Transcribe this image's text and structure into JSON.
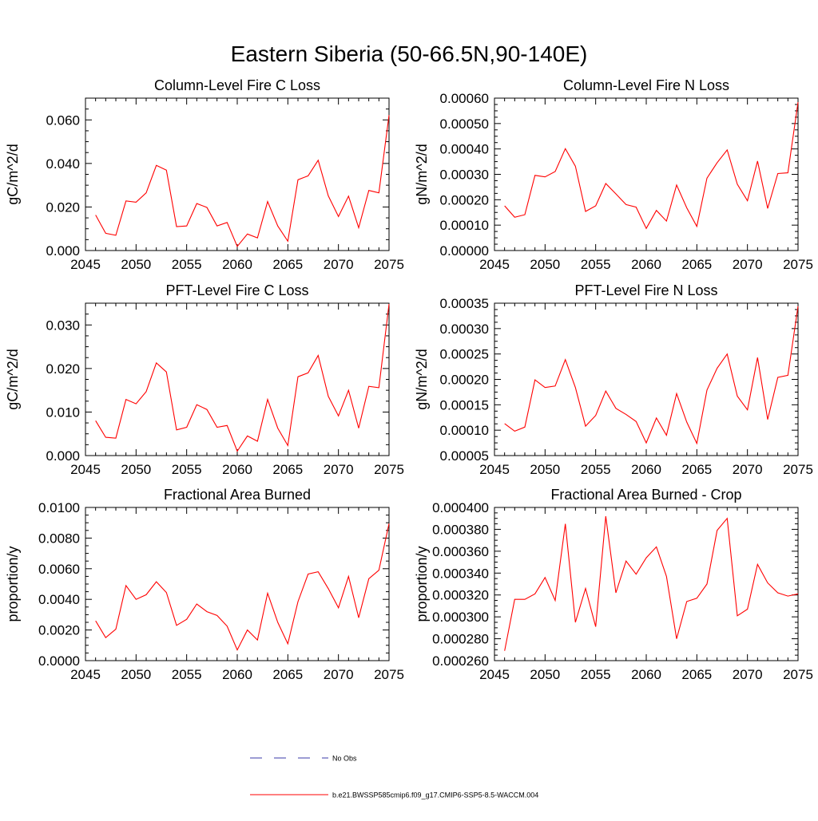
{
  "page": {
    "title": "Eastern Siberia (50-66.5N,90-140E)"
  },
  "chart_data": [
    {
      "id": "col-fire-c-loss",
      "type": "line",
      "title": "Column-Level Fire C Loss",
      "xlabel": "",
      "ylabel": "gC/m^2/d",
      "xlim": [
        2045,
        2075
      ],
      "ylim": [
        0,
        0.07
      ],
      "xticks": [
        2045,
        2050,
        2055,
        2060,
        2065,
        2070,
        2075
      ],
      "yticks": [
        0,
        0.02,
        0.04,
        0.06
      ],
      "ytick_labels": [
        "0.000",
        "0.020",
        "0.040",
        "0.060"
      ],
      "series": [
        {
          "name": "b.e21.BWSSP585cmip6.f09_g17.CMIP6-SSP5-8.5-WACCM.004",
          "color": "#ff0000",
          "x": [
            2046,
            2047,
            2048,
            2049,
            2050,
            2051,
            2052,
            2053,
            2054,
            2055,
            2056,
            2057,
            2058,
            2059,
            2060,
            2061,
            2062,
            2063,
            2064,
            2065,
            2066,
            2067,
            2068,
            2069,
            2070,
            2071,
            2072,
            2073,
            2074,
            2075
          ],
          "values": [
            0.0163,
            0.0079,
            0.007,
            0.0228,
            0.0222,
            0.0265,
            0.0391,
            0.0369,
            0.011,
            0.0113,
            0.0216,
            0.0198,
            0.0113,
            0.0129,
            0.0019,
            0.0076,
            0.0058,
            0.0225,
            0.0113,
            0.0043,
            0.0325,
            0.0343,
            0.0415,
            0.0251,
            0.0156,
            0.025,
            0.0105,
            0.0276,
            0.0265,
            0.0622
          ]
        }
      ]
    },
    {
      "id": "col-fire-n-loss",
      "type": "line",
      "title": "Column-Level Fire N Loss",
      "xlabel": "",
      "ylabel": "gN/m^2/d",
      "xlim": [
        2045,
        2075
      ],
      "ylim": [
        0,
        0.0006
      ],
      "xticks": [
        2045,
        2050,
        2055,
        2060,
        2065,
        2070,
        2075
      ],
      "yticks": [
        0,
        0.0001,
        0.0002,
        0.0003,
        0.0004,
        0.0005,
        0.0006
      ],
      "ytick_labels": [
        "0.00000",
        "0.00010",
        "0.00020",
        "0.00030",
        "0.00040",
        "0.00050",
        "0.00060"
      ],
      "series": [
        {
          "name": "b.e21.BWSSP585cmip6.f09_g17.CMIP6-SSP5-8.5-WACCM.004",
          "color": "#ff0000",
          "x": [
            2046,
            2047,
            2048,
            2049,
            2050,
            2051,
            2052,
            2053,
            2054,
            2055,
            2056,
            2057,
            2058,
            2059,
            2060,
            2061,
            2062,
            2063,
            2064,
            2065,
            2066,
            2067,
            2068,
            2069,
            2070,
            2071,
            2072,
            2073,
            2074,
            2075
          ],
          "values": [
            0.000176,
            0.000131,
            0.000141,
            0.000296,
            0.00029,
            0.000311,
            0.000401,
            0.000332,
            0.000154,
            0.000176,
            0.000264,
            0.000223,
            0.000181,
            0.000171,
            8.7e-05,
            0.000158,
            0.000116,
            0.000258,
            0.000168,
            9.5e-05,
            0.000285,
            0.000346,
            0.000396,
            0.000261,
            0.000196,
            0.000352,
            0.000166,
            0.000303,
            0.000306,
            0.000584
          ]
        }
      ]
    },
    {
      "id": "pft-fire-c-loss",
      "type": "line",
      "title": "PFT-Level Fire C Loss",
      "xlabel": "",
      "ylabel": "gC/m^2/d",
      "xlim": [
        2045,
        2075
      ],
      "ylim": [
        0,
        0.035
      ],
      "xticks": [
        2045,
        2050,
        2055,
        2060,
        2065,
        2070,
        2075
      ],
      "yticks": [
        0,
        0.01,
        0.02,
        0.03
      ],
      "ytick_labels": [
        "0.000",
        "0.010",
        "0.020",
        "0.030"
      ],
      "series": [
        {
          "name": "b.e21.BWSSP585cmip6.f09_g17.CMIP6-SSP5-8.5-WACCM.004",
          "color": "#ff0000",
          "x": [
            2046,
            2047,
            2048,
            2049,
            2050,
            2051,
            2052,
            2053,
            2054,
            2055,
            2056,
            2057,
            2058,
            2059,
            2060,
            2061,
            2062,
            2063,
            2064,
            2065,
            2066,
            2067,
            2068,
            2069,
            2070,
            2071,
            2072,
            2073,
            2074,
            2075
          ],
          "values": [
            0.008,
            0.0042,
            0.004,
            0.0129,
            0.0119,
            0.0147,
            0.0213,
            0.0192,
            0.0059,
            0.0065,
            0.0117,
            0.0106,
            0.0065,
            0.0069,
            0.001,
            0.0045,
            0.0033,
            0.0129,
            0.0063,
            0.0023,
            0.0181,
            0.019,
            0.023,
            0.0136,
            0.0091,
            0.015,
            0.0063,
            0.0159,
            0.0156,
            0.0348
          ]
        }
      ]
    },
    {
      "id": "pft-fire-n-loss",
      "type": "line",
      "title": "PFT-Level Fire N Loss",
      "xlabel": "",
      "ylabel": "gN/m^2/d",
      "xlim": [
        2045,
        2075
      ],
      "ylim": [
        5e-05,
        0.00035
      ],
      "xticks": [
        2045,
        2050,
        2055,
        2060,
        2065,
        2070,
        2075
      ],
      "yticks": [
        5e-05,
        0.0001,
        0.00015,
        0.0002,
        0.00025,
        0.0003,
        0.00035
      ],
      "ytick_labels": [
        "0.00005",
        "0.00010",
        "0.00015",
        "0.00020",
        "0.00025",
        "0.00030",
        "0.00035"
      ],
      "series": [
        {
          "name": "b.e21.BWSSP585cmip6.f09_g17.CMIP6-SSP5-8.5-WACCM.004",
          "color": "#ff0000",
          "x": [
            2046,
            2047,
            2048,
            2049,
            2050,
            2051,
            2052,
            2053,
            2054,
            2055,
            2056,
            2057,
            2058,
            2059,
            2060,
            2061,
            2062,
            2063,
            2064,
            2065,
            2066,
            2067,
            2068,
            2069,
            2070,
            2071,
            2072,
            2073,
            2074,
            2075
          ],
          "values": [
            0.000113,
            9.8e-05,
            0.000106,
            0.000199,
            0.000184,
            0.000187,
            0.000239,
            0.000184,
            0.000108,
            0.000129,
            0.000177,
            0.000143,
            0.000131,
            0.000117,
            7.5e-05,
            0.000124,
            9e-05,
            0.000172,
            0.000116,
            7.4e-05,
            0.000179,
            0.000222,
            0.00025,
            0.000167,
            0.00014,
            0.000243,
            0.000121,
            0.000204,
            0.000208,
            0.000344
          ]
        }
      ]
    },
    {
      "id": "frac-area-burned",
      "type": "line",
      "title": "Fractional Area Burned",
      "xlabel": "",
      "ylabel": "proportion/y",
      "xlim": [
        2045,
        2075
      ],
      "ylim": [
        0,
        0.01
      ],
      "xticks": [
        2045,
        2050,
        2055,
        2060,
        2065,
        2070,
        2075
      ],
      "yticks": [
        0,
        0.002,
        0.004,
        0.006,
        0.008,
        0.01
      ],
      "ytick_labels": [
        "0.0000",
        "0.0020",
        "0.0040",
        "0.0060",
        "0.0080",
        "0.0100"
      ],
      "series": [
        {
          "name": "b.e21.BWSSP585cmip6.f09_g17.CMIP6-SSP5-8.5-WACCM.004",
          "color": "#ff0000",
          "x": [
            2046,
            2047,
            2048,
            2049,
            2050,
            2051,
            2052,
            2053,
            2054,
            2055,
            2056,
            2057,
            2058,
            2059,
            2060,
            2061,
            2062,
            2063,
            2064,
            2065,
            2066,
            2067,
            2068,
            2069,
            2070,
            2071,
            2072,
            2073,
            2074,
            2075
          ],
          "values": [
            0.0026,
            0.0015,
            0.00205,
            0.0049,
            0.004,
            0.0043,
            0.00515,
            0.00445,
            0.0023,
            0.0027,
            0.0037,
            0.0032,
            0.00295,
            0.00225,
            0.0007,
            0.002,
            0.00135,
            0.0044,
            0.0025,
            0.0011,
            0.00385,
            0.00565,
            0.0058,
            0.0047,
            0.00345,
            0.0055,
            0.0028,
            0.00535,
            0.0059,
            0.00895
          ]
        }
      ]
    },
    {
      "id": "frac-area-burned-crop",
      "type": "line",
      "title": "Fractional Area Burned - Crop",
      "xlabel": "",
      "ylabel": "proportion/y",
      "xlim": [
        2045,
        2075
      ],
      "ylim": [
        0.00026,
        0.0004
      ],
      "xticks": [
        2045,
        2050,
        2055,
        2060,
        2065,
        2070,
        2075
      ],
      "yticks": [
        0.00026,
        0.00028,
        0.0003,
        0.00032,
        0.00034,
        0.00036,
        0.00038,
        0.0004
      ],
      "ytick_labels": [
        "0.000260",
        "0.000280",
        "0.000300",
        "0.000320",
        "0.000340",
        "0.000360",
        "0.000380",
        "0.000400"
      ],
      "series": [
        {
          "name": "b.e21.BWSSP585cmip6.f09_g17.CMIP6-SSP5-8.5-WACCM.004",
          "color": "#ff0000",
          "x": [
            2046,
            2047,
            2048,
            2049,
            2050,
            2051,
            2052,
            2053,
            2054,
            2055,
            2056,
            2057,
            2058,
            2059,
            2060,
            2061,
            2062,
            2063,
            2064,
            2065,
            2066,
            2067,
            2068,
            2069,
            2070,
            2071,
            2072,
            2073,
            2074,
            2075
          ],
          "values": [
            0.000269,
            0.000316,
            0.000316,
            0.000321,
            0.000336,
            0.000315,
            0.000385,
            0.000295,
            0.000326,
            0.000291,
            0.000392,
            0.000322,
            0.000351,
            0.000339,
            0.000354,
            0.000364,
            0.000337,
            0.00028,
            0.000314,
            0.000317,
            0.00033,
            0.000379,
            0.00039,
            0.000301,
            0.000307,
            0.000348,
            0.000331,
            0.000322,
            0.000319,
            0.000321
          ]
        }
      ]
    }
  ],
  "legend": {
    "position": "bottom-center",
    "entries": [
      {
        "label": "No Obs",
        "color": "#3a3aa8",
        "style": "dashed"
      },
      {
        "label": "b.e21.BWSSP585cmip6.f09_g17.CMIP6-SSP5-8.5-WACCM.004",
        "color": "#ff0000",
        "style": "solid"
      }
    ]
  }
}
